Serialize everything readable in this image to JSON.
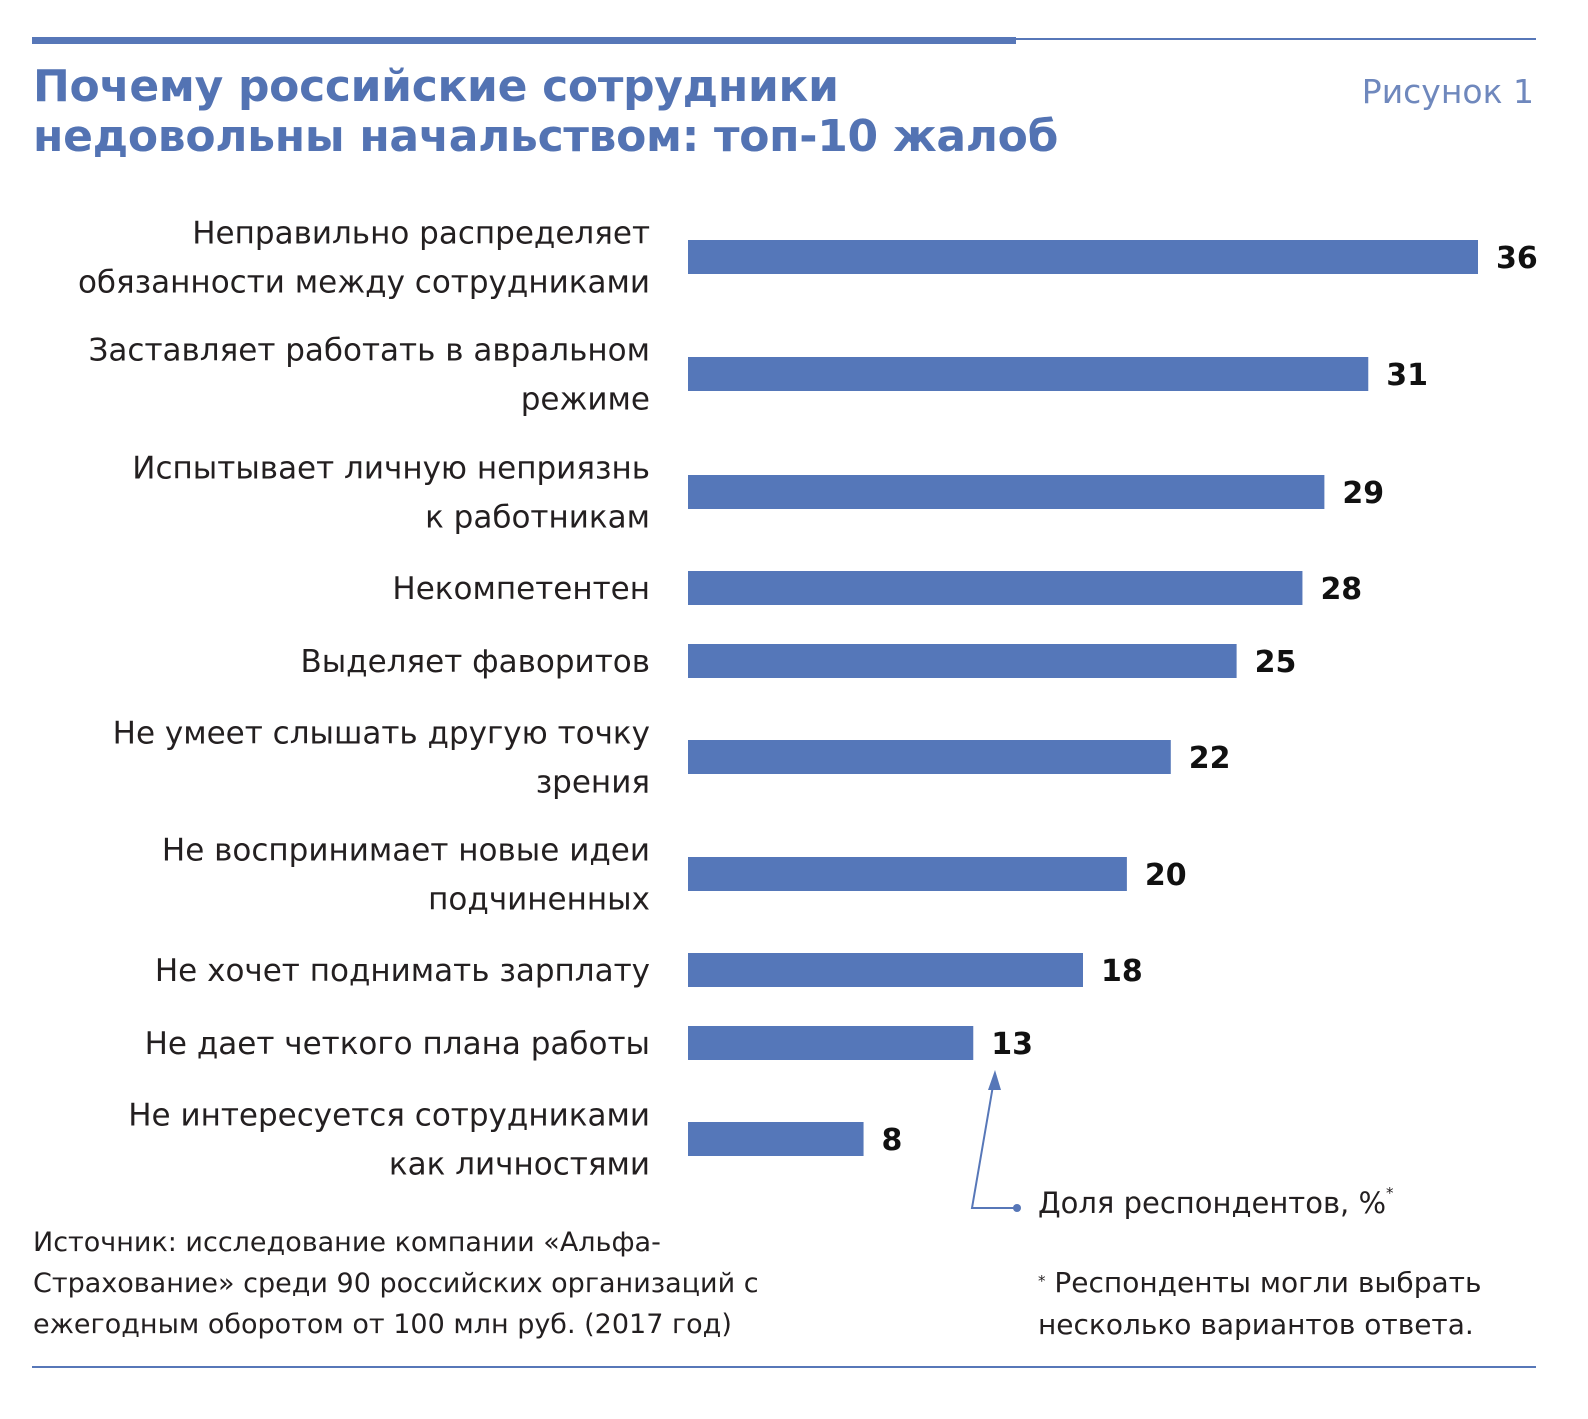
{
  "title": "Почему российские сотрудники\nнедовольны начальством: топ-10 жалоб",
  "figure_label": "Рисунок 1",
  "legend": {
    "label": "Доля респондентов, %",
    "mark": "*"
  },
  "footnote": {
    "mark": "*",
    "text": "Респонденты могли выбрать несколько вариантов ответа."
  },
  "source": "Источник: исследование компании «Альфа-Страхование» среди 90 российских организаций с ежегодным оборотом от 100 млн руб. (2017 год)",
  "colors": {
    "bar": "#5577b9",
    "title": "#5373b3",
    "rule": "#5777b8",
    "text": "#231f20"
  },
  "chart_data": {
    "type": "bar",
    "orientation": "horizontal",
    "title": "Почему российские сотрудники недовольны начальством: топ-10 жалоб",
    "xlabel": "Доля респондентов, %",
    "ylabel": "",
    "xlim": [
      0,
      36
    ],
    "grid": false,
    "categories": [
      [
        "Неправильно распределяет",
        "обязанности между сотрудниками"
      ],
      [
        "Заставляет работать в авральном",
        "режиме"
      ],
      [
        "Испытывает личную неприязнь",
        "к работникам"
      ],
      [
        "Некомпетентен"
      ],
      [
        "Выделяет фаворитов"
      ],
      [
        "Не умеет слышать другую точку",
        "зрения"
      ],
      [
        "Не воспринимает новые идеи",
        "подчиненных"
      ],
      [
        "Не хочет поднимать зарплату"
      ],
      [
        "Не дает четкого плана работы"
      ],
      [
        "Не интересуется сотрудниками",
        "как личностями"
      ]
    ],
    "values": [
      36,
      31,
      29,
      28,
      25,
      22,
      20,
      18,
      13,
      8
    ]
  }
}
